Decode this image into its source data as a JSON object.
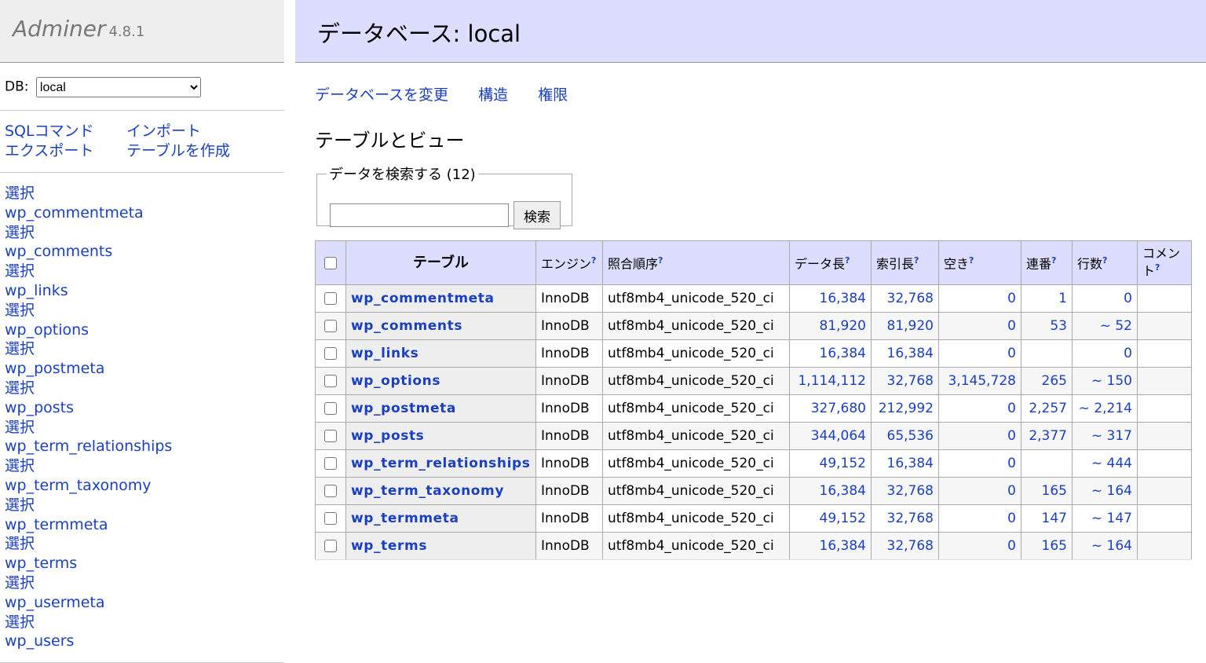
{
  "app": {
    "name": "Adminer",
    "version": "4.8.1"
  },
  "sidebar": {
    "db_label": "DB:",
    "db_value": "local",
    "links": [
      "SQLコマンド",
      "インポート",
      "エクスポート",
      "テーブルを作成"
    ],
    "select_prefix": "選択",
    "tables": [
      "wp_commentmeta",
      "wp_comments",
      "wp_links",
      "wp_options",
      "wp_postmeta",
      "wp_posts",
      "wp_term_relationships",
      "wp_term_taxonomy",
      "wp_termmeta",
      "wp_terms",
      "wp_usermeta",
      "wp_users"
    ]
  },
  "main": {
    "title": "データベース: local",
    "nav": [
      "データベースを変更",
      "構造",
      "権限"
    ],
    "section_title": "テーブルとビュー",
    "search": {
      "legend": "データを検索する (12)",
      "value": "",
      "button": "検索"
    },
    "columns": [
      "テーブル",
      "エンジン",
      "照合順序",
      "データ長",
      "索引長",
      "空き",
      "連番",
      "行数",
      "コメント"
    ],
    "help_mark": "?",
    "rows": [
      [
        "wp_commentmeta",
        "InnoDB",
        "utf8mb4_unicode_520_ci",
        "16,384",
        "32,768",
        "0",
        "1",
        "0",
        ""
      ],
      [
        "wp_comments",
        "InnoDB",
        "utf8mb4_unicode_520_ci",
        "81,920",
        "81,920",
        "0",
        "53",
        "~ 52",
        ""
      ],
      [
        "wp_links",
        "InnoDB",
        "utf8mb4_unicode_520_ci",
        "16,384",
        "16,384",
        "0",
        "",
        "0",
        ""
      ],
      [
        "wp_options",
        "InnoDB",
        "utf8mb4_unicode_520_ci",
        "1,114,112",
        "32,768",
        "3,145,728",
        "265",
        "~ 150",
        ""
      ],
      [
        "wp_postmeta",
        "InnoDB",
        "utf8mb4_unicode_520_ci",
        "327,680",
        "212,992",
        "0",
        "2,257",
        "~ 2,214",
        ""
      ],
      [
        "wp_posts",
        "InnoDB",
        "utf8mb4_unicode_520_ci",
        "344,064",
        "65,536",
        "0",
        "2,377",
        "~ 317",
        ""
      ],
      [
        "wp_term_relationships",
        "InnoDB",
        "utf8mb4_unicode_520_ci",
        "49,152",
        "16,384",
        "0",
        "",
        "~ 444",
        ""
      ],
      [
        "wp_term_taxonomy",
        "InnoDB",
        "utf8mb4_unicode_520_ci",
        "16,384",
        "32,768",
        "0",
        "165",
        "~ 164",
        ""
      ],
      [
        "wp_termmeta",
        "InnoDB",
        "utf8mb4_unicode_520_ci",
        "49,152",
        "32,768",
        "0",
        "147",
        "~ 147",
        ""
      ],
      [
        "wp_terms",
        "InnoDB",
        "utf8mb4_unicode_520_ci",
        "16,384",
        "32,768",
        "0",
        "165",
        "~ 164",
        ""
      ]
    ]
  }
}
